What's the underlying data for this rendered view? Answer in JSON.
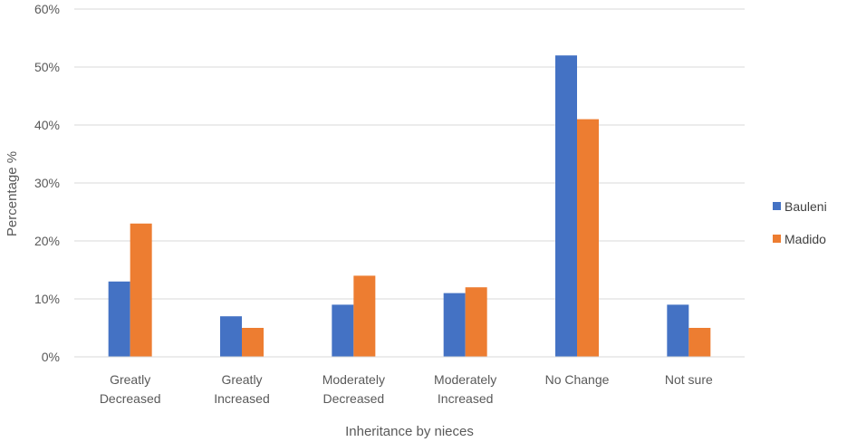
{
  "chart_data": {
    "type": "bar",
    "categories": [
      [
        "Greatly",
        "Decreased"
      ],
      [
        "Greatly",
        "Increased"
      ],
      [
        "Moderately",
        "Decreased"
      ],
      [
        "Moderately",
        "Increased"
      ],
      [
        "No Change"
      ],
      [
        "Not sure"
      ]
    ],
    "series": [
      {
        "name": "Bauleni",
        "color": "#4472C4",
        "values": [
          13,
          7,
          9,
          11,
          52,
          9
        ]
      },
      {
        "name": "Madido",
        "color": "#ED7D31",
        "values": [
          23,
          5,
          14,
          12,
          41,
          5
        ]
      }
    ],
    "xlabel": "Inheritance by nieces",
    "ylabel": "Percentage %",
    "ylim": [
      0,
      60
    ],
    "yticks": [
      0,
      10,
      20,
      30,
      40,
      50,
      60
    ],
    "ytick_labels": [
      "0%",
      "10%",
      "20%",
      "30%",
      "40%",
      "50%",
      "60%"
    ],
    "grid": true,
    "legend_position": "right"
  }
}
